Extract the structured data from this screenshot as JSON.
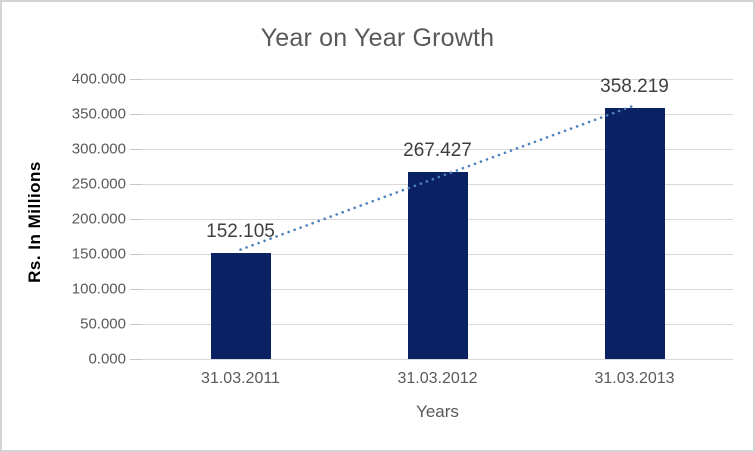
{
  "chart_data": {
    "type": "bar",
    "title": "Year on Year Growth",
    "xlabel": "Years",
    "ylabel": "Rs. In Millions",
    "categories": [
      "31.03.2011",
      "31.03.2012",
      "31.03.2013"
    ],
    "values": [
      152.105,
      267.427,
      358.219
    ],
    "data_labels": [
      "152.105",
      "267.427",
      "358.219"
    ],
    "ylim": [
      0,
      400
    ],
    "ytick_interval": 50,
    "ytick_labels": [
      "0.000",
      "50.000",
      "100.000",
      "150.000",
      "200.000",
      "250.000",
      "300.000",
      "350.000",
      "400.000"
    ],
    "grid": true,
    "legend": "none",
    "trendline": {
      "type": "linear",
      "style": "dotted"
    },
    "colors": {
      "bar": "#0a2164",
      "trendline": "#4f81bd",
      "gridline": "#d9d9d9",
      "tick_mark": "#c6c6c6",
      "axis_text": "#595959",
      "title_text": "#595959",
      "data_label_text": "#3f3f3f",
      "y_axis_title_text": "#000000",
      "chart_border": "#d3d3d3"
    }
  }
}
